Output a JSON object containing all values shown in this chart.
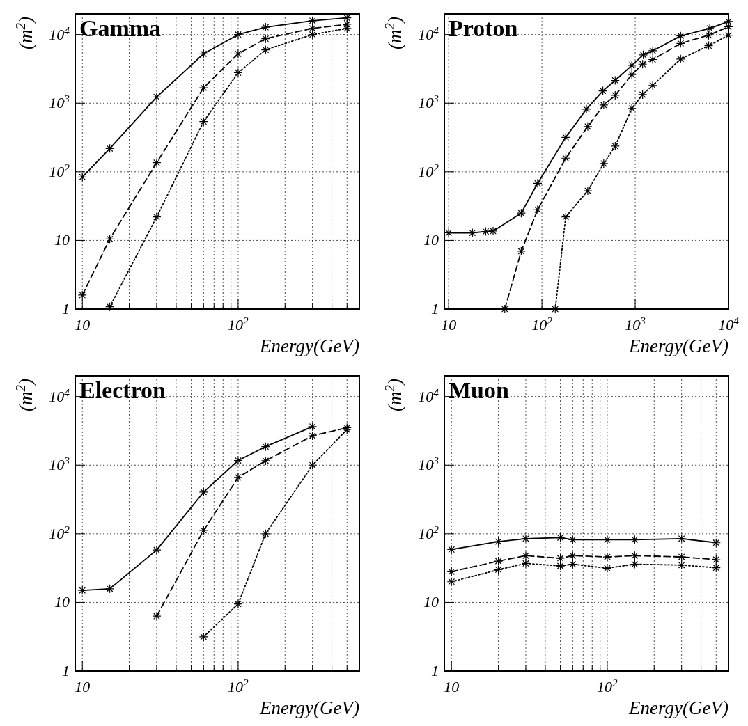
{
  "chart_data": [
    {
      "type": "line",
      "title": "Gamma",
      "xlabel": "Energy(GeV)",
      "ylabel": "(m$^{2}$)",
      "log": "xy",
      "grid": true,
      "marker": "cross",
      "xlim": [
        9,
        600
      ],
      "ylim": [
        1,
        20000
      ],
      "xticks": [
        {
          "value": 10,
          "label": "10"
        },
        {
          "value": 20,
          "label": null
        },
        {
          "value": 30,
          "label": null
        },
        {
          "value": 40,
          "label": null
        },
        {
          "value": 50,
          "label": null
        },
        {
          "value": 60,
          "label": null
        },
        {
          "value": 70,
          "label": null
        },
        {
          "value": 80,
          "label": null
        },
        {
          "value": 90,
          "label": null
        },
        {
          "value": 100,
          "label": "10$^{2}$"
        },
        {
          "value": 200,
          "label": null
        },
        {
          "value": 300,
          "label": null
        },
        {
          "value": 400,
          "label": null
        },
        {
          "value": 500,
          "label": null
        }
      ],
      "yticks": [
        {
          "value": 1,
          "label": "1"
        },
        {
          "value": 10,
          "label": "10"
        },
        {
          "value": 100,
          "label": "10$^{2}$"
        },
        {
          "value": 1000,
          "label": "10$^{3}$"
        },
        {
          "value": 10000,
          "label": "10$^{4}$"
        }
      ],
      "series": [
        {
          "color": "#000000",
          "line_style": "solid",
          "x": [
            10,
            15,
            30,
            60,
            100,
            150,
            300,
            500
          ],
          "values": [
            84,
            219,
            1230,
            5250,
            10000,
            12800,
            15900,
            17500
          ]
        },
        {
          "color": "#000000",
          "line_style": "dashed",
          "x": [
            10,
            15,
            30,
            60,
            100,
            150,
            300,
            500
          ],
          "values": [
            1.6,
            10.5,
            136,
            1680,
            5250,
            8700,
            12300,
            14100
          ]
        },
        {
          "color": "#000000",
          "line_style": "dotted",
          "x": [
            15,
            30,
            60,
            100,
            150,
            300,
            500
          ],
          "values": [
            1.08,
            22,
            540,
            2780,
            6000,
            10000,
            12300
          ]
        }
      ]
    },
    {
      "type": "line",
      "title": "Proton",
      "xlabel": "Energy(GeV)",
      "ylabel": "(m$^{2}$)",
      "log": "xy",
      "grid": true,
      "marker": "cross",
      "xlim": [
        9,
        10000
      ],
      "ylim": [
        1,
        20000
      ],
      "xticks": [
        {
          "value": 10,
          "label": "10"
        },
        {
          "value": 100,
          "label": "10$^{2}$"
        },
        {
          "value": 1000,
          "label": "10$^{3}$"
        },
        {
          "value": 10000,
          "label": "10$^{4}$"
        }
      ],
      "yticks": [
        {
          "value": 1,
          "label": "1"
        },
        {
          "value": 10,
          "label": "10"
        },
        {
          "value": 100,
          "label": "10$^{2}$"
        },
        {
          "value": 1000,
          "label": "10$^{3}$"
        },
        {
          "value": 10000,
          "label": "10$^{4}$"
        }
      ],
      "series": [
        {
          "color": "#000000",
          "line_style": "solid",
          "x": [
            10,
            18,
            25,
            30,
            60,
            90,
            180,
            300,
            450,
            610,
            920,
            1220,
            1540,
            3070,
            6300,
            10000
          ],
          "values": [
            12.9,
            12.9,
            13.5,
            13.7,
            25,
            68,
            318,
            818,
            1510,
            2150,
            3560,
            5060,
            5810,
            9550,
            12300,
            15500
          ]
        },
        {
          "color": "#000000",
          "line_style": "dashed",
          "x": [
            40,
            60,
            90,
            180,
            310,
            460,
            610,
            920,
            1200,
            1540,
            3070,
            6130,
            10000
          ],
          "values": [
            1,
            6.95,
            28,
            158,
            457,
            940,
            1300,
            2610,
            3700,
            4330,
            7450,
            9770,
            13000
          ]
        },
        {
          "color": "#000000",
          "line_style": "dotted",
          "x": [
            139,
            180,
            310,
            460,
            610,
            920,
            1200,
            1540,
            3070,
            6130,
            10000
          ],
          "values": [
            1,
            22,
            53,
            132,
            237,
            838,
            1333,
            1815,
            4400,
            6890,
            9770
          ]
        }
      ]
    },
    {
      "type": "line",
      "title": "Electron",
      "xlabel": "Energy(GeV)",
      "ylabel": "(m$^{2}$)",
      "log": "xy",
      "grid": true,
      "marker": "cross",
      "xlim": [
        9,
        600
      ],
      "ylim": [
        1,
        20000
      ],
      "xticks": [
        {
          "value": 10,
          "label": "10"
        },
        {
          "value": 20,
          "label": null
        },
        {
          "value": 30,
          "label": null
        },
        {
          "value": 40,
          "label": null
        },
        {
          "value": 50,
          "label": null
        },
        {
          "value": 60,
          "label": null
        },
        {
          "value": 70,
          "label": null
        },
        {
          "value": 80,
          "label": null
        },
        {
          "value": 90,
          "label": null
        },
        {
          "value": 100,
          "label": "10$^{2}$"
        },
        {
          "value": 200,
          "label": null
        },
        {
          "value": 300,
          "label": null
        },
        {
          "value": 400,
          "label": null
        },
        {
          "value": 500,
          "label": null
        }
      ],
      "yticks": [
        {
          "value": 1,
          "label": "1"
        },
        {
          "value": 10,
          "label": "10"
        },
        {
          "value": 100,
          "label": "10$^{2}$"
        },
        {
          "value": 1000,
          "label": "10$^{3}$"
        },
        {
          "value": 10000,
          "label": "10$^{4}$"
        }
      ],
      "series": [
        {
          "color": "#000000",
          "line_style": "solid",
          "x": [
            10,
            15,
            30,
            60,
            100,
            150,
            300
          ],
          "values": [
            15,
            15.8,
            58,
            405,
            1170,
            1860,
            3650
          ]
        },
        {
          "color": "#000000",
          "line_style": "dashed",
          "x": [
            30,
            60,
            100,
            150,
            300,
            500
          ],
          "values": [
            6.3,
            112,
            663,
            1160,
            2680,
            3510
          ]
        },
        {
          "color": "#000000",
          "line_style": "dotted",
          "x": [
            60,
            100,
            150,
            300,
            500
          ],
          "values": [
            3.15,
            9.5,
            100,
            1000,
            3310
          ]
        }
      ]
    },
    {
      "type": "line",
      "title": "Muon",
      "xlabel": "Energy(GeV)",
      "ylabel": "(m$^{2}$)",
      "log": "xy",
      "grid": true,
      "marker": "cross",
      "xlim": [
        9,
        600
      ],
      "ylim": [
        1,
        20000
      ],
      "xticks": [
        {
          "value": 10,
          "label": "10"
        },
        {
          "value": 20,
          "label": null
        },
        {
          "value": 30,
          "label": null
        },
        {
          "value": 40,
          "label": null
        },
        {
          "value": 50,
          "label": null
        },
        {
          "value": 60,
          "label": null
        },
        {
          "value": 70,
          "label": null
        },
        {
          "value": 80,
          "label": null
        },
        {
          "value": 90,
          "label": null
        },
        {
          "value": 100,
          "label": "10$^{2}$"
        },
        {
          "value": 200,
          "label": null
        },
        {
          "value": 300,
          "label": null
        },
        {
          "value": 400,
          "label": null
        },
        {
          "value": 500,
          "label": null
        }
      ],
      "yticks": [
        {
          "value": 1,
          "label": "1"
        },
        {
          "value": 10,
          "label": "10"
        },
        {
          "value": 100,
          "label": "10$^{2}$"
        },
        {
          "value": 1000,
          "label": "10$^{3}$"
        },
        {
          "value": 10000,
          "label": "10$^{4}$"
        }
      ],
      "series": [
        {
          "color": "#000000",
          "line_style": "solid",
          "x": [
            10,
            20,
            30,
            50,
            60,
            100,
            150,
            300,
            500
          ],
          "values": [
            59,
            77,
            85,
            88,
            82,
            82,
            82,
            85,
            74
          ]
        },
        {
          "color": "#000000",
          "line_style": "dashed",
          "x": [
            10,
            20,
            30,
            50,
            60,
            100,
            150,
            300,
            500
          ],
          "values": [
            28,
            40,
            48,
            44,
            48,
            46,
            48,
            46,
            42
          ]
        },
        {
          "color": "#000000",
          "line_style": "dotted",
          "x": [
            10,
            20,
            30,
            50,
            60,
            100,
            150,
            300,
            500
          ],
          "values": [
            20,
            30,
            37,
            34,
            36,
            31.5,
            36,
            35,
            32
          ]
        }
      ]
    }
  ]
}
